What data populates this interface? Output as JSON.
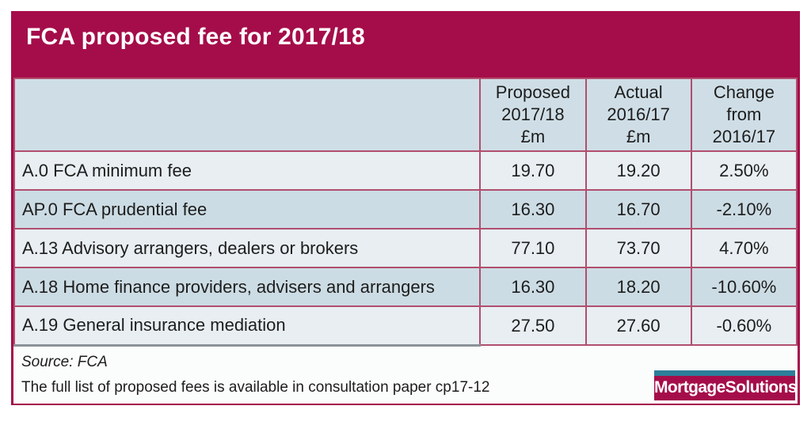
{
  "title": "FCA proposed fee for 2017/18",
  "colors": {
    "brand_crimson": "#a50d4a",
    "table_border": "#b14e6e",
    "header_row_bg": "#cfdee6",
    "row_light_bg": "#e8eef2",
    "row_dark_bg": "#ccdce4",
    "logo_teal": "#2e7e99"
  },
  "table": {
    "header": [
      {
        "lines": [
          "",
          "",
          ""
        ]
      },
      {
        "lines": [
          "Proposed",
          "2017/18",
          "£m"
        ]
      },
      {
        "lines": [
          "Actual",
          "2016/17",
          "£m"
        ]
      },
      {
        "lines": [
          "Change",
          "from",
          "2016/17"
        ]
      }
    ],
    "rows": [
      {
        "label": "A.0 FCA minimum fee",
        "values": [
          "19.70",
          "19.20",
          "2.50%"
        ]
      },
      {
        "label": "AP.0 FCA prudential fee",
        "values": [
          "16.30",
          "16.70",
          "-2.10%"
        ]
      },
      {
        "label": "A.13 Advisory arrangers, dealers or brokers",
        "values": [
          "77.10",
          "73.70",
          "4.70%"
        ]
      },
      {
        "label": "A.18 Home finance providers, advisers and arrangers",
        "values": [
          "16.30",
          "18.20",
          "-10.60%"
        ]
      },
      {
        "label": "A.19 General insurance mediation",
        "values": [
          "27.50",
          "27.60",
          "-0.60%"
        ]
      }
    ]
  },
  "footer": {
    "source": "Source: FCA",
    "note": "The full list of proposed fees is available in consultation paper cp17-12",
    "logo_text": "MortgageSolutions"
  }
}
